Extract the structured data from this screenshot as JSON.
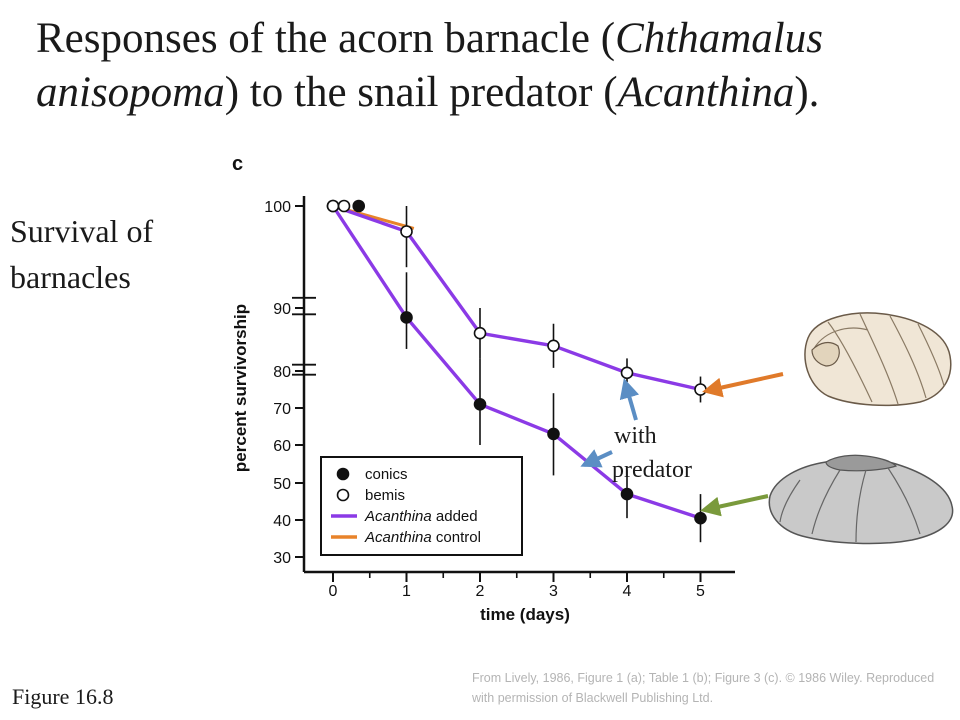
{
  "title": {
    "line1_a": "Responses of the acorn barnacle (",
    "line1_b": "Chthamalus",
    "line2_a": "anisopoma",
    "line2_b": ") to the snail predator (",
    "line2_c": "Acanthina",
    "line2_d": ")."
  },
  "side_label": "Survival of barnacles",
  "figure_number": "Figure 16.8",
  "credit": "From Lively, 1986, Figure 1 (a); Table 1 (b); Figure 3 (c). © 1986 Wiley. Reproduced with permission of Blackwell Publishing Ltd.",
  "annotation": {
    "line1": "with",
    "line2": "predator"
  },
  "colors": {
    "added": "#8b3ae6",
    "control": "#e8832a",
    "arrow_blue": "#5b8ec4",
    "arrow_orange": "#e07a2a",
    "arrow_green": "#7a9a3c"
  },
  "icons": [
    "conic-barnacle-shell-image",
    "bemis-barnacle-shell-image"
  ],
  "chart_data": {
    "type": "line",
    "panel_label": "c",
    "xlabel": "time (days)",
    "ylabel": "percent survivorship",
    "y_scale": "nonlinear",
    "xlim": [
      -0.25,
      5.4
    ],
    "ylim": [
      30,
      100
    ],
    "x_ticks": [
      0,
      1,
      2,
      3,
      4,
      5
    ],
    "y_ticks": [
      30,
      40,
      50,
      60,
      70,
      80,
      90,
      100
    ],
    "grid": false,
    "legend": {
      "placement": "bottom-left",
      "entries": [
        {
          "label": "conics",
          "marker": "filled-circle"
        },
        {
          "label": "bemis",
          "marker": "open-circle"
        },
        {
          "label_italic": "Acanthina",
          "label_rest": " added",
          "line": "added"
        },
        {
          "label_italic": "Acanthina",
          "label_rest": " control",
          "line": "control"
        }
      ]
    },
    "series": [
      {
        "name": "conics",
        "marker": "filled",
        "line": "added",
        "x": [
          0,
          1,
          2,
          3,
          4,
          5
        ],
        "y": [
          100,
          88.5,
          71,
          63,
          47,
          40.5
        ],
        "err": [
          0,
          5,
          11,
          11,
          6.5,
          6.5
        ]
      },
      {
        "name": "bemis",
        "marker": "open",
        "line": "added",
        "x": [
          0,
          1,
          2,
          3,
          4,
          5
        ],
        "y": [
          100,
          97.5,
          86,
          84,
          79.5,
          75
        ],
        "err": [
          0,
          3.5,
          4,
          3.5,
          2.5,
          3.5
        ]
      },
      {
        "name": "conics",
        "marker": "filled",
        "line": "control",
        "x": [
          0.35
        ],
        "y": [
          100
        ],
        "err": [
          0
        ]
      },
      {
        "name": "bemis",
        "marker": "open",
        "line": "control",
        "x": [
          0.15
        ],
        "y": [
          100
        ],
        "err": [
          0
        ]
      },
      {
        "name": "Acanthina control",
        "marker": "none",
        "line": "control",
        "x": [
          0,
          1.1
        ],
        "y": [
          100,
          97.8
        ],
        "err": [
          0,
          0
        ]
      }
    ]
  }
}
